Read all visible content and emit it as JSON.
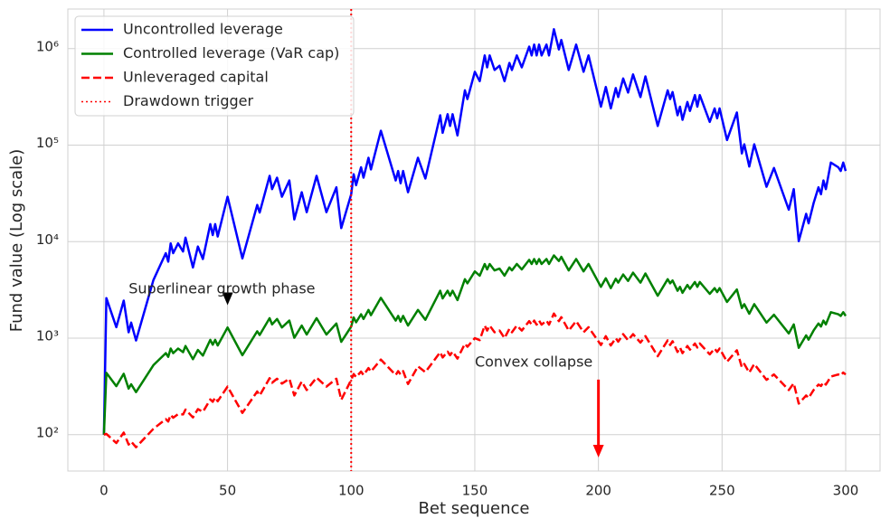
{
  "chart_data": {
    "type": "line",
    "xlabel": "Bet sequence",
    "ylabel": "Fund value (Log scale)",
    "log_y": true,
    "grid": true,
    "legend": "upper left",
    "xlim": [
      -14.6,
      313.9
    ],
    "ylim": [
      42,
      2570000
    ],
    "xticks": [
      0,
      50,
      100,
      150,
      200,
      250,
      300
    ],
    "yticks": [
      {
        "value": 100,
        "label": "10²"
      },
      {
        "value": 1000,
        "label": "10³"
      },
      {
        "value": 10000,
        "label": "10⁴"
      },
      {
        "value": 100000,
        "label": "10⁵"
      },
      {
        "value": 1000000,
        "label": "10⁶"
      }
    ],
    "x": [
      0,
      1,
      5,
      8,
      10,
      11,
      13,
      20,
      25,
      26,
      27,
      28,
      30,
      32,
      33,
      36,
      38,
      40,
      43,
      44,
      45,
      46,
      50,
      56,
      62,
      63,
      67,
      68,
      70,
      72,
      75,
      77,
      80,
      82,
      86,
      90,
      94,
      96,
      100,
      101,
      102,
      104,
      105,
      107,
      108,
      112,
      118,
      119,
      120,
      121,
      123,
      127,
      130,
      136,
      137,
      139,
      140,
      141,
      143,
      146,
      147,
      150,
      152,
      154,
      155,
      156,
      158,
      160,
      162,
      164,
      165,
      167,
      169,
      172,
      173,
      174,
      175,
      176,
      177,
      179,
      180,
      182,
      184,
      185,
      188,
      191,
      194,
      196,
      201,
      203,
      205,
      207,
      208,
      210,
      212,
      214,
      217,
      219,
      224,
      228,
      229,
      230,
      232,
      233,
      234,
      236,
      237,
      239,
      240,
      241,
      245,
      247,
      248,
      249,
      252,
      256,
      258,
      259,
      261,
      263,
      268,
      271,
      277,
      279,
      281,
      284,
      285,
      287,
      289,
      290,
      291,
      292,
      294,
      297,
      298,
      299,
      300
    ],
    "series": [
      {
        "name": "Uncontrolled leverage",
        "color": "#0000ff",
        "style": "solid",
        "values": [
          100,
          2600,
          1300,
          2450,
          1150,
          1450,
          945,
          4000,
          7600,
          6200,
          9600,
          7600,
          9600,
          7900,
          11000,
          5400,
          8900,
          6600,
          15200,
          11700,
          15200,
          11300,
          29200,
          6700,
          24000,
          20000,
          48000,
          35000,
          46000,
          29200,
          43000,
          17000,
          32500,
          20200,
          48000,
          20200,
          36500,
          13800,
          31000,
          50000,
          38500,
          59000,
          46000,
          74000,
          56000,
          141000,
          43000,
          54000,
          40300,
          54000,
          32500,
          74000,
          45000,
          204000,
          134000,
          209000,
          158000,
          209000,
          126000,
          370000,
          300000,
          575000,
          460000,
          850000,
          640000,
          850000,
          600000,
          665000,
          460000,
          710000,
          600000,
          850000,
          640000,
          1050000,
          850000,
          1100000,
          850000,
          1100000,
          850000,
          1100000,
          850000,
          1590000,
          980000,
          1230000,
          600000,
          1100000,
          575000,
          850000,
          250000,
          400000,
          240000,
          390000,
          315000,
          490000,
          350000,
          540000,
          315000,
          515000,
          158000,
          370000,
          300000,
          355000,
          204000,
          250000,
          183000,
          280000,
          226000,
          330000,
          250000,
          330000,
          174000,
          240000,
          190000,
          240000,
          113000,
          218000,
          82000,
          102000,
          60000,
          102000,
          37000,
          58000,
          21400,
          35000,
          10100,
          19400,
          15500,
          25000,
          36500,
          31000,
          43000,
          35000,
          66000,
          59000,
          54000,
          66000,
          54000
        ]
      },
      {
        "name": "Controlled leverage (VaR cap)",
        "color": "#008000",
        "style": "solid",
        "values": [
          100,
          437,
          318,
          428,
          300,
          333,
          276,
          525,
          700,
          640,
          780,
          700,
          780,
          716,
          830,
          605,
          755,
          660,
          960,
          855,
          960,
          840,
          1290,
          665,
          1180,
          1080,
          1610,
          1390,
          1580,
          1290,
          1520,
          1010,
          1350,
          1090,
          1610,
          1090,
          1420,
          915,
          1320,
          1640,
          1460,
          1770,
          1580,
          1960,
          1730,
          2620,
          1520,
          1700,
          1480,
          1700,
          1350,
          1960,
          1550,
          3100,
          2580,
          3100,
          2750,
          3100,
          2480,
          4080,
          3700,
          4920,
          4440,
          5860,
          5150,
          5860,
          5030,
          5260,
          4440,
          5400,
          5030,
          5860,
          5150,
          6480,
          5860,
          6600,
          5860,
          6600,
          5860,
          6600,
          5860,
          7200,
          6300,
          6950,
          5030,
          6600,
          4920,
          5860,
          3400,
          4170,
          3300,
          4130,
          3760,
          4570,
          3920,
          4770,
          3760,
          4680,
          2750,
          4080,
          3700,
          3960,
          3100,
          3400,
          2950,
          3560,
          3240,
          3820,
          3400,
          3820,
          2880,
          3300,
          3000,
          3300,
          2370,
          3190,
          2050,
          2250,
          1790,
          2250,
          1450,
          1750,
          1120,
          1390,
          795,
          1070,
          965,
          1200,
          1420,
          1320,
          1520,
          1390,
          1860,
          1770,
          1700,
          1860,
          1700
        ]
      },
      {
        "name": "Unleveraged capital",
        "color": "#ff0000",
        "style": "dashed",
        "values": [
          100,
          102,
          82,
          105,
          79,
          85,
          74,
          115,
          145,
          137,
          160,
          150,
          163,
          162,
          182,
          151,
          184,
          172,
          232,
          219,
          243,
          222,
          315,
          168,
          280,
          255,
          385,
          345,
          380,
          338,
          380,
          255,
          355,
          290,
          390,
          315,
          380,
          230,
          370,
          425,
          395,
          450,
          415,
          490,
          450,
          600,
          415,
          455,
          420,
          455,
          335,
          510,
          445,
          715,
          630,
          725,
          665,
          725,
          615,
          875,
          815,
          1000,
          955,
          1350,
          1200,
          1350,
          1150,
          1200,
          1000,
          1250,
          1150,
          1350,
          1200,
          1500,
          1380,
          1520,
          1380,
          1520,
          1380,
          1520,
          1380,
          1800,
          1500,
          1650,
          1200,
          1500,
          1150,
          1300,
          850,
          1050,
          840,
          1000,
          920,
          1100,
          950,
          1100,
          900,
          1050,
          650,
          950,
          850,
          930,
          720,
          800,
          700,
          830,
          760,
          880,
          800,
          880,
          680,
          780,
          720,
          780,
          570,
          750,
          500,
          540,
          440,
          540,
          370,
          420,
          290,
          340,
          210,
          255,
          240,
          290,
          330,
          320,
          350,
          330,
          400,
          420,
          410,
          440,
          420
        ]
      }
    ],
    "vline": {
      "name": "Drawdown trigger",
      "x": 100,
      "color": "#ff0000",
      "style": "dotted"
    },
    "annotations": [
      {
        "text": "Superlinear growth phase",
        "xy": [
          50,
          2200
        ],
        "xytext": [
          10,
          3200
        ],
        "color": "#000000"
      },
      {
        "text": "Convex collapse",
        "xy": [
          200,
          58
        ],
        "xytext": [
          150,
          560
        ],
        "color": "#ff0000"
      }
    ]
  }
}
